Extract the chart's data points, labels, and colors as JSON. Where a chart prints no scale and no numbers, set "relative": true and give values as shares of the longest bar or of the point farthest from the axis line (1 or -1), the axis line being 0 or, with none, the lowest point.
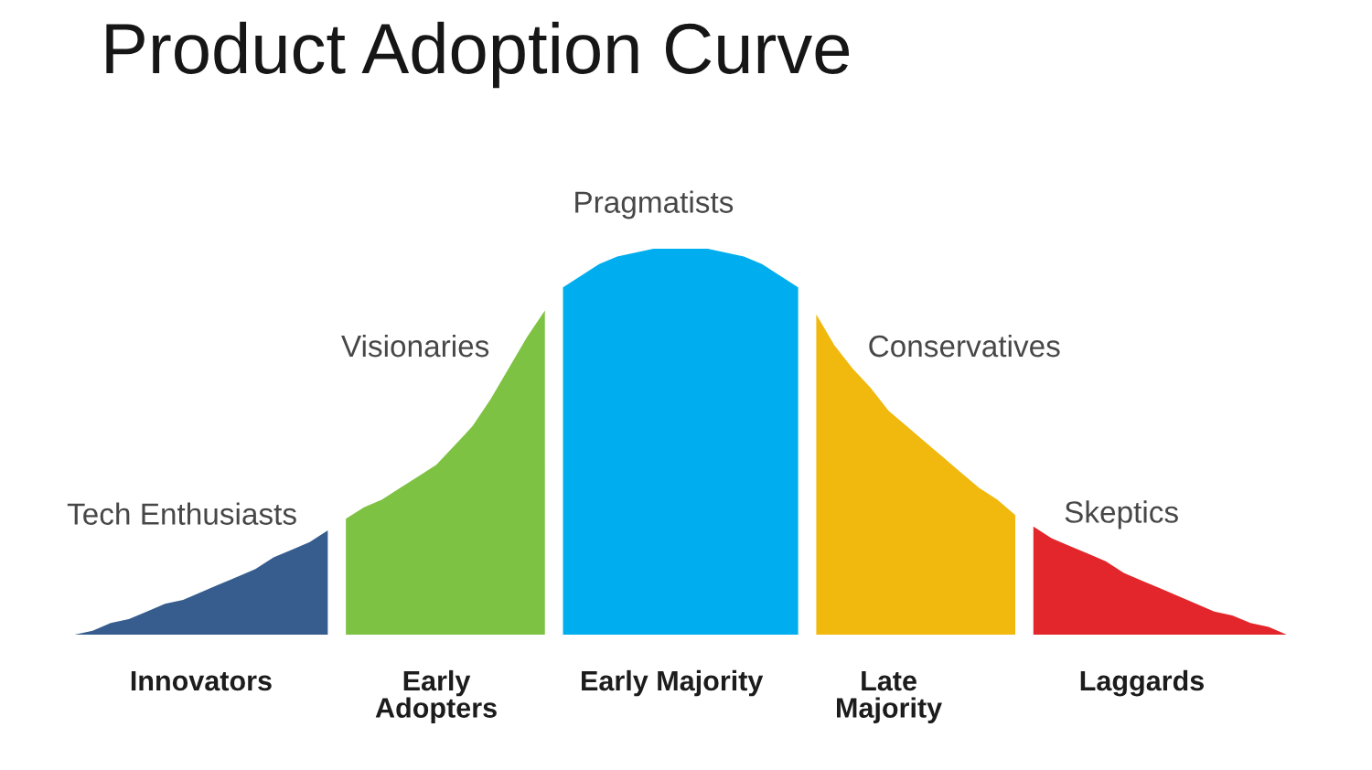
{
  "chart_data": {
    "type": "area",
    "title": "Product Adoption Curve",
    "relative": true,
    "tick_labels": "x",
    "categories": [
      null,
      null,
      null,
      null,
      null,
      null,
      null,
      "Innovators",
      null,
      null,
      null,
      null,
      null,
      null,
      null,
      null,
      null,
      null,
      null,
      null,
      "Early\nAdopters",
      null,
      null,
      null,
      null,
      null,
      null,
      null,
      null,
      null,
      null,
      null,
      null,
      "Early Majority",
      null,
      null,
      null,
      null,
      null,
      null,
      null,
      null,
      null,
      null,
      null,
      "Late\nMajority",
      null,
      null,
      null,
      null,
      null,
      null,
      null,
      null,
      null,
      null,
      null,
      null,
      null,
      "Laggards",
      null,
      null,
      null,
      null,
      null,
      null,
      null,
      null
    ],
    "series": [
      {
        "name": "Tech Enthusiasts",
        "color": "#365d8e",
        "values": [
          0,
          0.01,
          0.03,
          0.04,
          0.06,
          0.08,
          0.09,
          0.11,
          0.13,
          0.15,
          0.17,
          0.2,
          0.22,
          0.24,
          0.27,
          null,
          null,
          null,
          null,
          null,
          null,
          null,
          null,
          null,
          null,
          null,
          null,
          null,
          null,
          null,
          null,
          null,
          null,
          null,
          null,
          null,
          null,
          null,
          null,
          null,
          null,
          null,
          null,
          null,
          null,
          null,
          null,
          null,
          null,
          null,
          null,
          null,
          null,
          null,
          null,
          null,
          null,
          null,
          null,
          null,
          null,
          null,
          null,
          null,
          null,
          null,
          null,
          null
        ]
      },
      {
        "name": "Visionaries",
        "color": "#7dc242",
        "values": [
          null,
          null,
          null,
          null,
          null,
          null,
          null,
          null,
          null,
          null,
          null,
          null,
          null,
          null,
          null,
          0.3,
          0.33,
          0.35,
          0.38,
          0.41,
          0.44,
          0.49,
          0.54,
          0.61,
          0.69,
          0.77,
          0.84,
          null,
          null,
          null,
          null,
          null,
          null,
          null,
          null,
          null,
          null,
          null,
          null,
          null,
          null,
          null,
          null,
          null,
          null,
          null,
          null,
          null,
          null,
          null,
          null,
          null,
          null,
          null,
          null,
          null,
          null,
          null,
          null,
          null,
          null,
          null,
          null,
          null,
          null,
          null,
          null,
          null
        ]
      },
      {
        "name": "Pragmatists",
        "color": "#00aeef",
        "values": [
          null,
          null,
          null,
          null,
          null,
          null,
          null,
          null,
          null,
          null,
          null,
          null,
          null,
          null,
          null,
          null,
          null,
          null,
          null,
          null,
          null,
          null,
          null,
          null,
          null,
          null,
          null,
          0.9,
          0.93,
          0.96,
          0.98,
          0.99,
          1,
          1,
          1,
          1,
          0.99,
          0.98,
          0.96,
          0.93,
          0.9,
          null,
          null,
          null,
          null,
          null,
          null,
          null,
          null,
          null,
          null,
          null,
          null,
          null,
          null,
          null,
          null,
          null,
          null,
          null,
          null,
          null,
          null,
          null,
          null,
          null,
          null,
          null
        ]
      },
      {
        "name": "Conservatives",
        "color": "#f1b80d",
        "values": [
          null,
          null,
          null,
          null,
          null,
          null,
          null,
          null,
          null,
          null,
          null,
          null,
          null,
          null,
          null,
          null,
          null,
          null,
          null,
          null,
          null,
          null,
          null,
          null,
          null,
          null,
          null,
          null,
          null,
          null,
          null,
          null,
          null,
          null,
          null,
          null,
          null,
          null,
          null,
          null,
          null,
          0.83,
          0.75,
          0.69,
          0.64,
          0.58,
          0.54,
          0.5,
          0.46,
          0.42,
          0.38,
          0.35,
          0.31,
          null,
          null,
          null,
          null,
          null,
          null,
          null,
          null,
          null,
          null,
          null,
          null,
          null,
          null,
          null
        ]
      },
      {
        "name": "Skeptics",
        "color": "#e3262b",
        "values": [
          null,
          null,
          null,
          null,
          null,
          null,
          null,
          null,
          null,
          null,
          null,
          null,
          null,
          null,
          null,
          null,
          null,
          null,
          null,
          null,
          null,
          null,
          null,
          null,
          null,
          null,
          null,
          null,
          null,
          null,
          null,
          null,
          null,
          null,
          null,
          null,
          null,
          null,
          null,
          null,
          null,
          null,
          null,
          null,
          null,
          null,
          null,
          null,
          null,
          null,
          null,
          null,
          null,
          0.28,
          0.25,
          0.23,
          0.21,
          0.19,
          0.16,
          0.14,
          0.12,
          0.1,
          0.08,
          0.06,
          0.05,
          0.03,
          0.02,
          0
        ]
      }
    ]
  }
}
